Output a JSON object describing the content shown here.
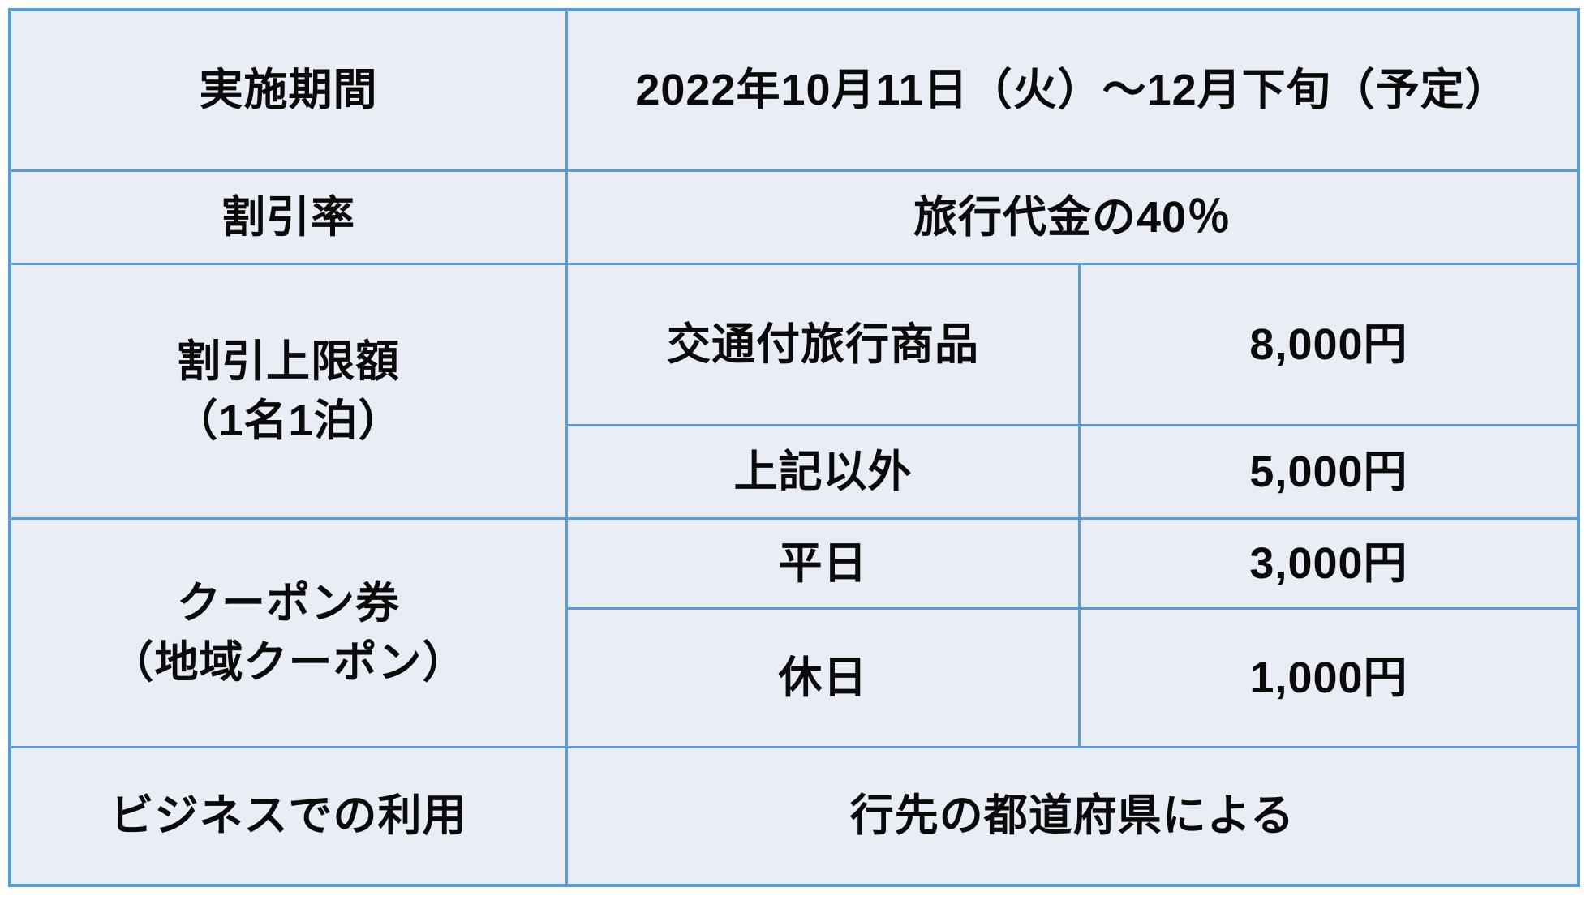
{
  "table": {
    "row1": {
      "label": "実施期間",
      "value": "2022年10月11日（火）～12月下旬（予定）"
    },
    "row2": {
      "label": "割引率",
      "value": "旅行代金の40％"
    },
    "row3": {
      "label_line1": "割引上限額",
      "label_line2": "（1名1泊）",
      "sub1_name": "交通付旅行商品",
      "sub1_value": "8,000円",
      "sub2_name": "上記以外",
      "sub2_value": "5,000円"
    },
    "row4": {
      "label_line1": "クーポン券",
      "label_line2": "（地域クーポン）",
      "sub1_name": "平日",
      "sub1_value": "3,000円",
      "sub2_name": "休日",
      "sub2_value": "1,000円"
    },
    "row5": {
      "label": "ビジネスでの利用",
      "value": "行先の都道府県による"
    }
  },
  "colors": {
    "border": "#5b9bd5",
    "cell_bg": "#e9edf6",
    "text": "#0a0a0a",
    "page_bg": "#ffffff"
  }
}
